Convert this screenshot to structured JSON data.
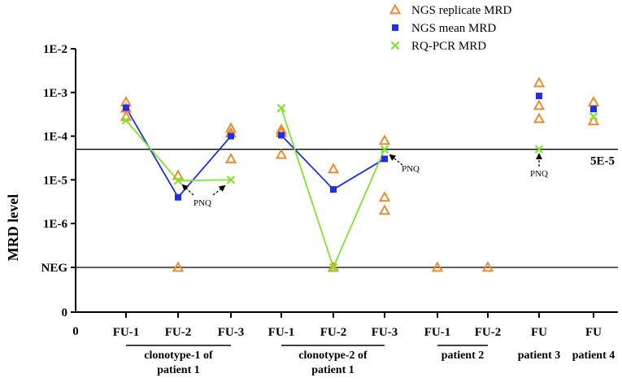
{
  "chart_data": {
    "type": "scatter",
    "ylabel": "MRD level",
    "y_axis": {
      "scale": "log with NEG and 0 positions",
      "tick_labels": [
        "1E-2",
        "1E-3",
        "1E-4",
        "1E-5",
        "1E-6",
        "NEG",
        "0"
      ],
      "tick_values": [
        -2,
        -3,
        -4,
        -5,
        -6,
        "NEG",
        0
      ]
    },
    "x_axis": {
      "origin_label": "0",
      "categories": [
        "FU-1",
        "FU-2",
        "FU-3",
        "FU-1",
        "FU-2",
        "FU-3",
        "FU-1",
        "FU-2",
        "FU",
        "FU"
      ]
    },
    "groups": [
      {
        "label": "clonotype-1 of patient 1",
        "from": 0,
        "to": 2
      },
      {
        "label": "clonotype-2 of patient 1",
        "from": 3,
        "to": 5
      },
      {
        "label": "patient 2",
        "from": 6,
        "to": 7
      },
      {
        "label": "patient 3",
        "from": 8,
        "to": 8
      },
      {
        "label": "patient 4",
        "from": 9,
        "to": 9
      }
    ],
    "reference_lines": [
      {
        "value_log10": -4.301,
        "label": "5E-5"
      },
      {
        "value": "NEG",
        "label": ""
      }
    ],
    "legend": [
      {
        "name": "NGS replicate MRD",
        "marker": "triangle-open",
        "color": "#f08a2c"
      },
      {
        "name": "NGS mean MRD",
        "marker": "square",
        "color": "#1f2ee8"
      },
      {
        "name": "RQ-PCR MRD",
        "marker": "x",
        "color": "#7de62c"
      }
    ],
    "series": [
      {
        "name": "NGS replicate MRD",
        "points": [
          {
            "x": 0,
            "y": -3.22
          },
          {
            "x": 0,
            "y": -3.36
          },
          {
            "x": 0,
            "y": -3.55
          },
          {
            "x": 1,
            "y": -4.9
          },
          {
            "x": 1,
            "y": "NEG"
          },
          {
            "x": 2,
            "y": -3.82
          },
          {
            "x": 2,
            "y": -3.93
          },
          {
            "x": 2,
            "y": -4.52
          },
          {
            "x": 3,
            "y": -3.85
          },
          {
            "x": 3,
            "y": -3.92
          },
          {
            "x": 3,
            "y": -4.42
          },
          {
            "x": 4,
            "y": -4.75
          },
          {
            "x": 4,
            "y": "NEG"
          },
          {
            "x": 5,
            "y": -4.1
          },
          {
            "x": 5,
            "y": -5.4
          },
          {
            "x": 5,
            "y": -5.7
          },
          {
            "x": 6,
            "y": "NEG"
          },
          {
            "x": 7,
            "y": "NEG"
          },
          {
            "x": 8,
            "y": -2.78
          },
          {
            "x": 8,
            "y": -3.3
          },
          {
            "x": 8,
            "y": -3.6
          },
          {
            "x": 9,
            "y": -3.22
          },
          {
            "x": 9,
            "y": -3.65
          }
        ]
      },
      {
        "name": "NGS mean MRD",
        "connect_groups": [
          [
            0,
            1,
            2
          ],
          [
            3,
            4,
            5
          ]
        ],
        "points": [
          {
            "x": 0,
            "y": -3.35
          },
          {
            "x": 1,
            "y": -5.4
          },
          {
            "x": 2,
            "y": -4.0
          },
          {
            "x": 3,
            "y": -3.98
          },
          {
            "x": 4,
            "y": -5.22
          },
          {
            "x": 5,
            "y": -4.52
          },
          {
            "x": 8,
            "y": -3.08
          },
          {
            "x": 9,
            "y": -3.38
          }
        ]
      },
      {
        "name": "RQ-PCR MRD",
        "connect_groups": [
          [
            0,
            1,
            2
          ],
          [
            3,
            4,
            5
          ]
        ],
        "points": [
          {
            "x": 0,
            "y": -3.64
          },
          {
            "x": 1,
            "y": -5.02
          },
          {
            "x": 2,
            "y": -5.0
          },
          {
            "x": 3,
            "y": -3.36
          },
          {
            "x": 4,
            "y": "NEG"
          },
          {
            "x": 5,
            "y": -4.3
          },
          {
            "x": 8,
            "y": -4.3
          },
          {
            "x": 9,
            "y": -3.55
          }
        ]
      }
    ],
    "annotations": [
      {
        "text": "PNQ",
        "near_x": 1,
        "arrows_to": [
          1,
          2
        ]
      },
      {
        "text": "PNQ",
        "near_x": 5,
        "arrows_to": [
          5
        ]
      },
      {
        "text": "PNQ",
        "near_x": 8,
        "arrows_to": [
          8
        ]
      }
    ]
  }
}
